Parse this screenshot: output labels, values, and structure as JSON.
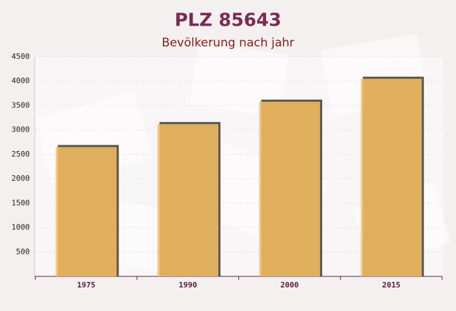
{
  "chart_data": {
    "type": "bar",
    "title": "PLZ 85643",
    "subtitle": "Bevölkerung nach jahr",
    "categories": [
      "1975",
      "1990",
      "2000",
      "2015"
    ],
    "values": [
      2650,
      3120,
      3580,
      4050
    ],
    "color": "#f8c060",
    "ylim": [
      0,
      4500
    ],
    "yticks": [
      500,
      1000,
      1500,
      2000,
      2500,
      3000,
      3500,
      4000,
      4500
    ],
    "grid": true
  }
}
